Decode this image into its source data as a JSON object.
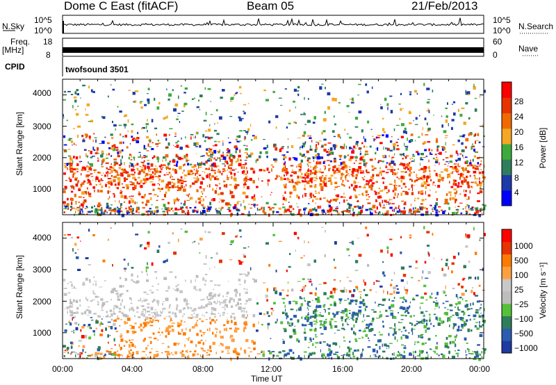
{
  "header": {
    "radar": "Dome C East (fitACF)",
    "beam": "Beam 05",
    "date": "21/Feb/2013"
  },
  "top_panels": {
    "nsky": {
      "label": "N.Sky",
      "ticks": [
        "10^5",
        "10^0"
      ]
    },
    "nsearch": {
      "label": "N.Search",
      "ticks": [
        "10^5",
        "10^0"
      ]
    },
    "freq": {
      "label": "Freq.",
      "unit": "[MHz]",
      "ticks": [
        "18",
        "8"
      ]
    },
    "nave": {
      "label": "Nave",
      "ticks": [
        "60",
        "0"
      ]
    },
    "cpid": {
      "label": "CPID",
      "value": "twofsound 3501"
    }
  },
  "colors": {
    "power_scale": [
      "#0000ff",
      "#1e3aa8",
      "#2e7d5b",
      "#3daa3d",
      "#f5a623",
      "#ef6a00",
      "#e63300",
      "#ff0000"
    ],
    "velocity_scale": [
      "#ff0000",
      "#e63300",
      "#ff7a00",
      "#ffa040",
      "#c8c8c8",
      "#bdbdbd",
      "#55c03a",
      "#2e7d5b",
      "#2a5cb0",
      "#1f3aa0"
    ]
  },
  "chart_data": [
    {
      "type": "heatmap",
      "name": "power",
      "xlabel": "",
      "ylabel": "Slant Range [km]",
      "x_ticks": [
        "00:00",
        "04:00",
        "08:00",
        "12:00",
        "16:00",
        "20:00",
        "00:00"
      ],
      "y_ticks": [
        1000,
        2000,
        3000,
        4000
      ],
      "xlim_hours": [
        0,
        24
      ],
      "ylim_km": [
        180,
        4500
      ],
      "colorbar_label": "Power [dB]",
      "colorbar_ticks": [
        "28",
        "24",
        "20",
        "16",
        "12",
        "8",
        "4"
      ],
      "colorbar_range": [
        0,
        32
      ]
    },
    {
      "type": "heatmap",
      "name": "velocity",
      "xlabel": "Time UT",
      "ylabel": "Slant Range [km]",
      "x_ticks": [
        "00:00",
        "04:00",
        "08:00",
        "12:00",
        "16:00",
        "20:00",
        "00:00"
      ],
      "y_ticks": [
        1000,
        2000,
        3000,
        4000
      ],
      "xlim_hours": [
        0,
        24
      ],
      "ylim_km": [
        180,
        4500
      ],
      "colorbar_label": "Velocity [m s⁻¹]",
      "colorbar_ticks": [
        "1000",
        "500",
        "100",
        "25",
        "−25",
        "−100",
        "−500",
        "−1000"
      ]
    }
  ]
}
